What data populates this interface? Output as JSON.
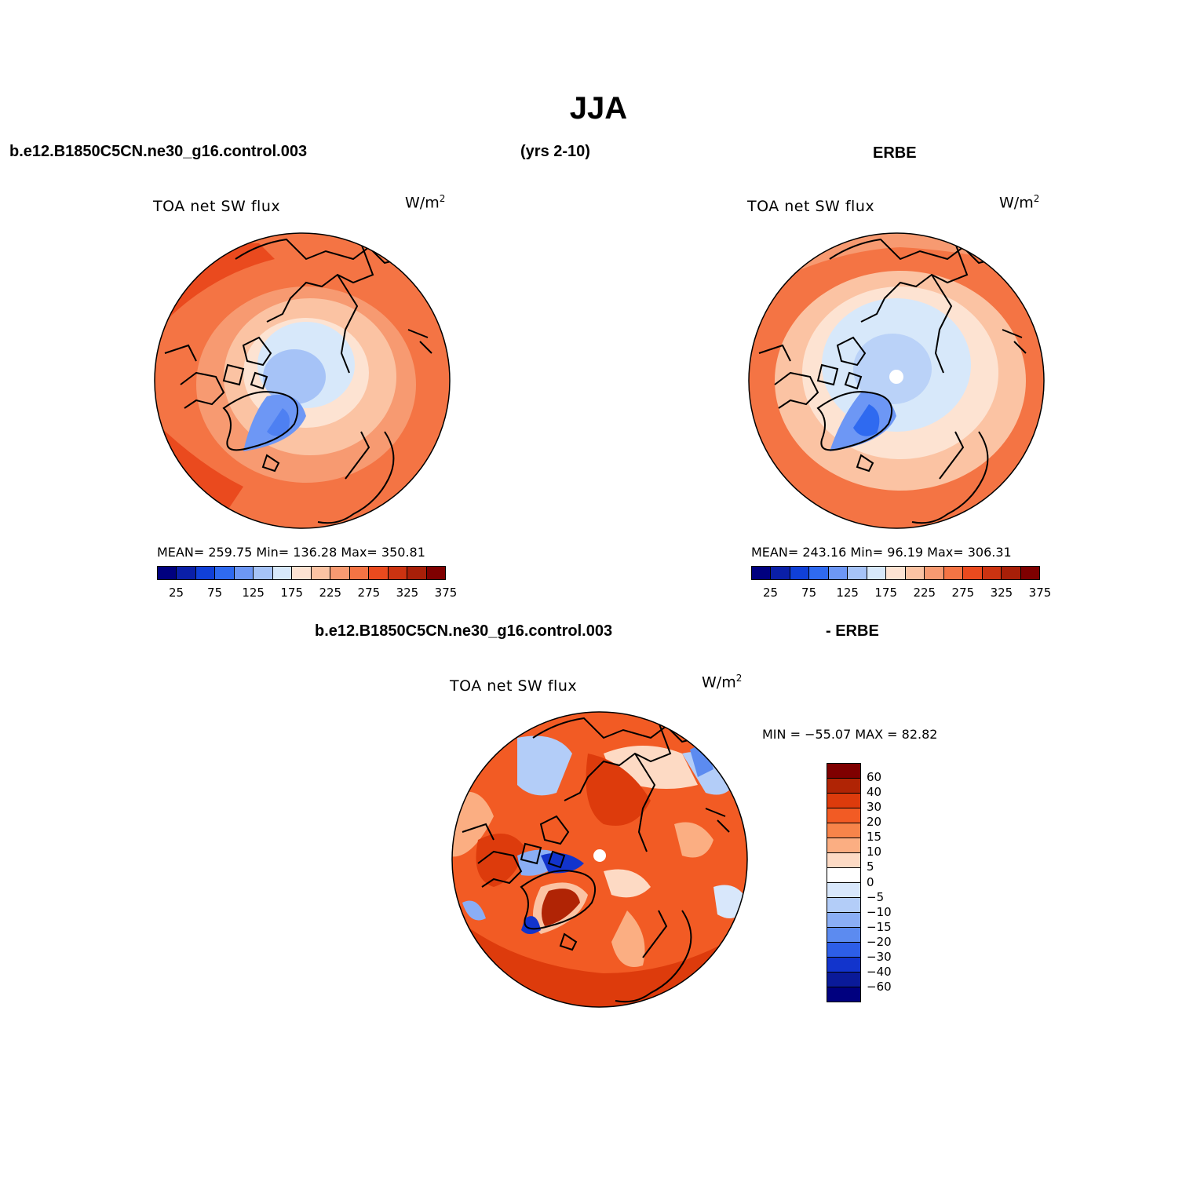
{
  "title": "JJA",
  "header": {
    "case_name": "b.e12.B1850C5CN.ne30_g16.control.003",
    "years": "(yrs 2-10)",
    "obs_name": "ERBE",
    "diff_case": "b.e12.B1850C5CN.ne30_g16.control.003",
    "diff_obs": "- ERBE"
  },
  "panels": {
    "model": {
      "name": "TOA net SW flux",
      "units": "W/m",
      "units_sup": "2",
      "stats": "MEAN= 259.75   Min= 136.28   Max= 350.81"
    },
    "obs": {
      "name": "TOA net SW flux",
      "units": "W/m",
      "units_sup": "2",
      "stats": "MEAN= 243.16   Min=  96.19   Max= 306.31"
    },
    "diff": {
      "name": "TOA net SW flux",
      "units": "W/m",
      "units_sup": "2",
      "stats": "MIN = −55.07 MAX =  82.82"
    }
  },
  "abs_colorbar": {
    "colors": [
      "#00007f",
      "#0a1fa8",
      "#1040d8",
      "#2f6af0",
      "#6d97f5",
      "#a6c3f7",
      "#d7e8fa",
      "#fde3d2",
      "#fbc3a3",
      "#f79a71",
      "#f47444",
      "#ea4a1e",
      "#cc3311",
      "#a81f08",
      "#7f0000"
    ],
    "labels": [
      "25",
      "75",
      "125",
      "175",
      "225",
      "275",
      "325",
      "375"
    ]
  },
  "diff_colorbar": {
    "colors": [
      "#7f0000",
      "#b02405",
      "#dd3b0c",
      "#f25b24",
      "#f7844a",
      "#fbae82",
      "#fddac4",
      "#ffffff",
      "#d8e7fb",
      "#b3cdf8",
      "#8aaef5",
      "#5c8bf0",
      "#2d5ee8",
      "#1234cc",
      "#0a1a99",
      "#00007f"
    ],
    "labels": [
      "60",
      "40",
      "30",
      "20",
      "15",
      "10",
      "5",
      "0",
      "−5",
      "−10",
      "−15",
      "−20",
      "−30",
      "−40",
      "−60"
    ]
  }
}
